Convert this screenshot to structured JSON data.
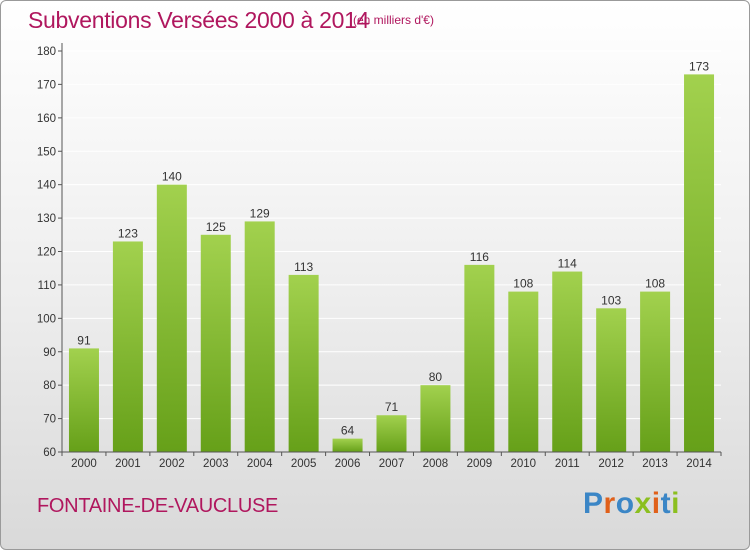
{
  "header": {
    "title": "Subventions Versées 2000 à 2014",
    "unit_note": "(en milliers d'€)"
  },
  "footer": {
    "commune": "FONTAINE-DE-VAUCLUSE",
    "logo_text": "Proxiti",
    "logo_colors": [
      "#3b86c6",
      "#e0601a",
      "#3b86c6",
      "#8bbf1f",
      "#e0601a",
      "#3b86c6",
      "#8bbf1f"
    ]
  },
  "colors": {
    "title": "#b0175e",
    "bar_light": "#a2d14e",
    "bar_dark": "#66a019",
    "grid": "#ffffff",
    "axis": "#555555"
  },
  "chart_data": {
    "type": "bar",
    "title": "Subventions Versées 2000 à 2014",
    "subtitle": "(en milliers d'€)",
    "xlabel": "",
    "ylabel": "",
    "categories": [
      "2000",
      "2001",
      "2002",
      "2003",
      "2004",
      "2005",
      "2006",
      "2007",
      "2008",
      "2009",
      "2010",
      "2011",
      "2012",
      "2013",
      "2014"
    ],
    "values": [
      91,
      123,
      140,
      125,
      129,
      113,
      64,
      71,
      80,
      116,
      108,
      114,
      103,
      108,
      173
    ],
    "ylim": [
      60,
      180
    ],
    "yticks": [
      60,
      70,
      80,
      90,
      100,
      110,
      120,
      130,
      140,
      150,
      160,
      170,
      180
    ],
    "grid": true,
    "legend": "none"
  }
}
